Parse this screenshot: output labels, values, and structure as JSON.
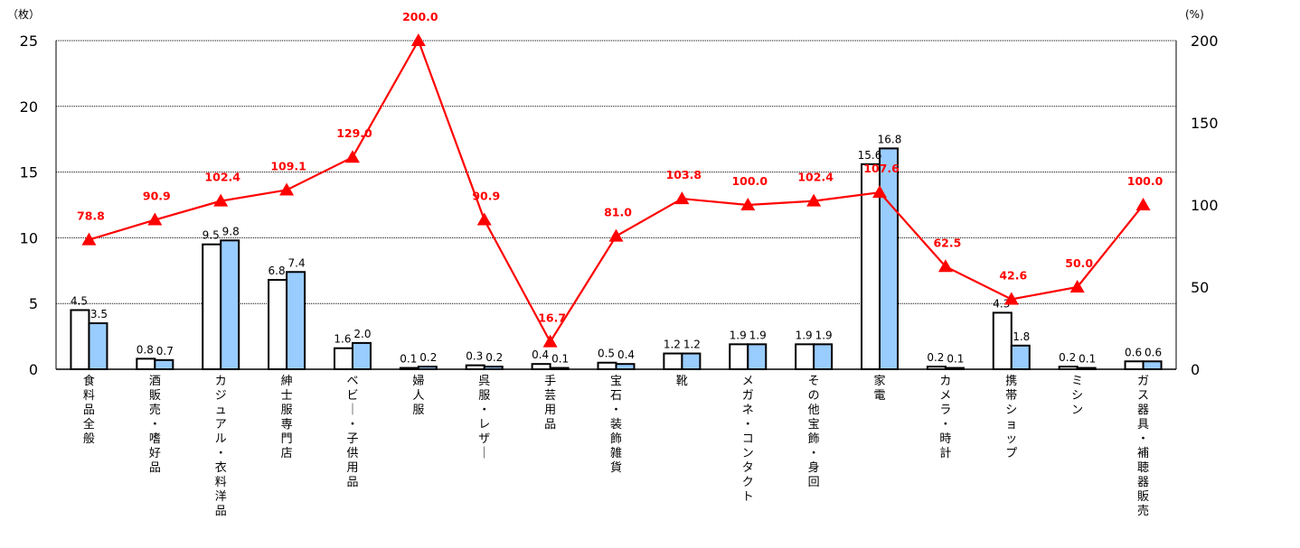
{
  "colors": {
    "series_a_fill": "#ffffff",
    "series_b_fill": "#99ccff",
    "bar_stroke": "#000000",
    "line": "#ff0000",
    "grid": "#000000"
  },
  "chart_data": {
    "type": "bar+line",
    "title": "",
    "y_left_unit": "（枚）",
    "y_right_unit": "(%)",
    "y_left_range": [
      0,
      25
    ],
    "y_left_ticks": [
      "0",
      "5",
      "10",
      "15",
      "20",
      "25"
    ],
    "y_right_range": [
      0,
      200
    ],
    "y_right_ticks": [
      "0",
      "50",
      "100",
      "150",
      "200"
    ],
    "grid": "horizontal dotted",
    "categories": [
      "食料品全般",
      "酒販売・嗜好品",
      "カジュアル・衣料洋品",
      "紳士服専門店",
      "ベビー・子供用品",
      "婦人服",
      "呉服・レザー",
      "手芸用品",
      "宝石・装飾雑貨",
      "靴",
      "メガネ・コンタクト",
      "その他宝飾・身回",
      "家電",
      "カメラ・時計",
      "携帯ショップ",
      "ミシン",
      "ガス器具・補聴器販売"
    ],
    "series": [
      {
        "axis": "left",
        "kind": "bar",
        "values": [
          4.5,
          0.8,
          9.5,
          6.8,
          1.6,
          0.1,
          0.3,
          0.4,
          0.5,
          1.2,
          1.9,
          1.9,
          15.6,
          0.2,
          4.3,
          0.2,
          0.6
        ],
        "labels": [
          "4.5",
          "0.8",
          "9.5",
          "6.8",
          "1.6",
          "0.1",
          "0.3",
          "0.4",
          "0.5",
          "1.2",
          "1.9",
          "1.9",
          "15.6",
          "0.2",
          "4.3",
          "0.2",
          "0.6"
        ]
      },
      {
        "axis": "left",
        "kind": "bar",
        "values": [
          3.5,
          0.7,
          9.8,
          7.4,
          2.0,
          0.2,
          0.2,
          0.1,
          0.4,
          1.2,
          1.9,
          1.9,
          16.8,
          0.1,
          1.8,
          0.1,
          0.6
        ],
        "labels": [
          "3.5",
          "0.7",
          "9.8",
          "7.4",
          "2.0",
          "0.2",
          "0.2",
          "0.1",
          "0.4",
          "1.2",
          "1.9",
          "1.9",
          "16.8",
          "0.1",
          "1.8",
          "0.1",
          "0.6"
        ]
      },
      {
        "axis": "right",
        "kind": "line",
        "marker": "triangle",
        "values": [
          78.8,
          90.9,
          102.4,
          109.1,
          129.0,
          200.0,
          90.9,
          16.7,
          81.0,
          103.8,
          100.0,
          102.4,
          107.6,
          62.5,
          42.6,
          50.0,
          100.0
        ],
        "labels": [
          "78.8",
          "90.9",
          "102.4",
          "109.1",
          "129.0",
          "200.0",
          "90.9",
          "16.7",
          "81.0",
          "103.8",
          "100.0",
          "102.4",
          "107.6",
          "62.5",
          "42.6",
          "50.0",
          "100.0"
        ]
      }
    ]
  }
}
